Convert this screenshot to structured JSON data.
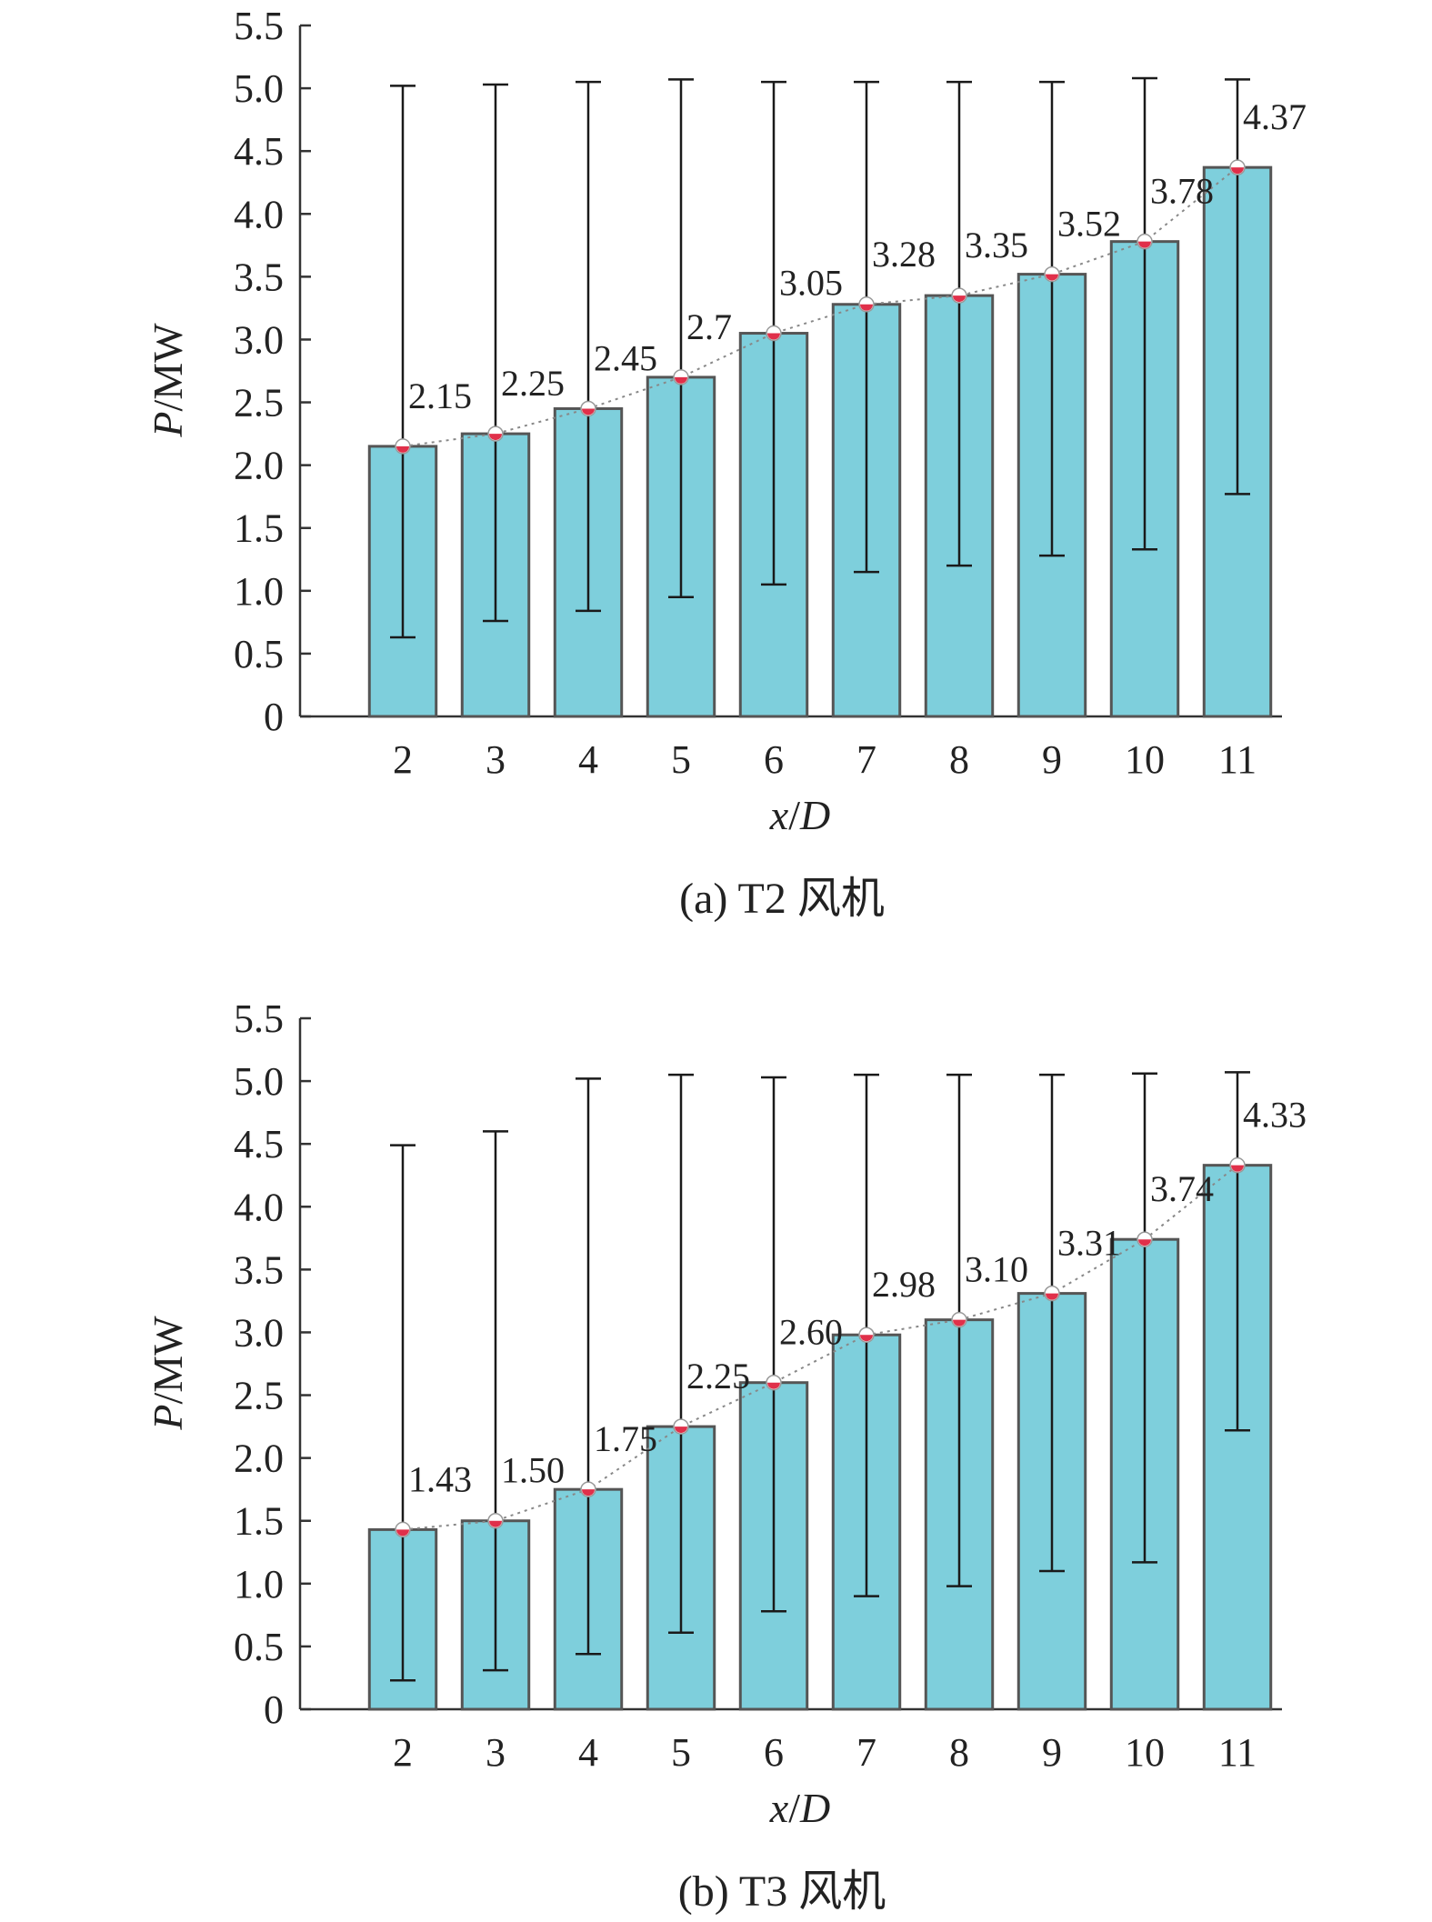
{
  "chart_data": [
    {
      "type": "bar",
      "caption": "(a)  T2 风机",
      "xlabel_italic": "x",
      "xlabel_rest": "/",
      "xlabel_italic2": "D",
      "ylabel_italic": "P",
      "ylabel_rest": "/MW",
      "categories": [
        "2",
        "3",
        "4",
        "5",
        "6",
        "7",
        "8",
        "9",
        "10",
        "11"
      ],
      "values": [
        2.15,
        2.25,
        2.45,
        2.7,
        3.05,
        3.28,
        3.35,
        3.52,
        3.78,
        4.37
      ],
      "value_labels": [
        "2.15",
        "2.25",
        "2.45",
        "2.7",
        "3.05",
        "3.28",
        "3.35",
        "3.52",
        "3.78",
        "4.37"
      ],
      "error_low": [
        0.63,
        0.76,
        0.84,
        0.95,
        1.05,
        1.15,
        1.2,
        1.28,
        1.33,
        1.77
      ],
      "error_high": [
        5.02,
        5.03,
        5.05,
        5.07,
        5.05,
        5.05,
        5.05,
        5.05,
        5.08,
        5.07
      ],
      "ylim": [
        0,
        5.5
      ],
      "yticks": [
        "0",
        "0.5",
        "1.0",
        "1.5",
        "2.0",
        "2.5",
        "3.0",
        "3.5",
        "4.0",
        "4.5",
        "5.0",
        "5.5"
      ],
      "bar_color": "#7ecfdc",
      "bar_edge": "#555555",
      "marker_color": "#e0304a",
      "trend_color": "#888888"
    },
    {
      "type": "bar",
      "caption": "(b)  T3 风机",
      "xlabel_italic": "x",
      "xlabel_rest": "/",
      "xlabel_italic2": "D",
      "ylabel_italic": "P",
      "ylabel_rest": "/MW",
      "categories": [
        "2",
        "3",
        "4",
        "5",
        "6",
        "7",
        "8",
        "9",
        "10",
        "11"
      ],
      "values": [
        1.43,
        1.5,
        1.75,
        2.25,
        2.6,
        2.98,
        3.1,
        3.31,
        3.74,
        4.33
      ],
      "value_labels": [
        "1.43",
        "1.50",
        "1.75",
        "2.25",
        "2.60",
        "2.98",
        "3.10",
        "3.31",
        "3.74",
        "4.33"
      ],
      "error_low": [
        0.23,
        0.31,
        0.44,
        0.61,
        0.78,
        0.9,
        0.98,
        1.1,
        1.17,
        2.22
      ],
      "error_high": [
        4.49,
        4.6,
        5.02,
        5.05,
        5.03,
        5.05,
        5.05,
        5.05,
        5.06,
        5.07
      ],
      "ylim": [
        0,
        5.5
      ],
      "yticks": [
        "0",
        "0.5",
        "1.0",
        "1.5",
        "2.0",
        "2.5",
        "3.0",
        "3.5",
        "4.0",
        "4.5",
        "5.0",
        "5.5"
      ],
      "bar_color": "#7ecfdc",
      "bar_edge": "#555555",
      "marker_color": "#e0304a",
      "trend_color": "#888888"
    }
  ]
}
